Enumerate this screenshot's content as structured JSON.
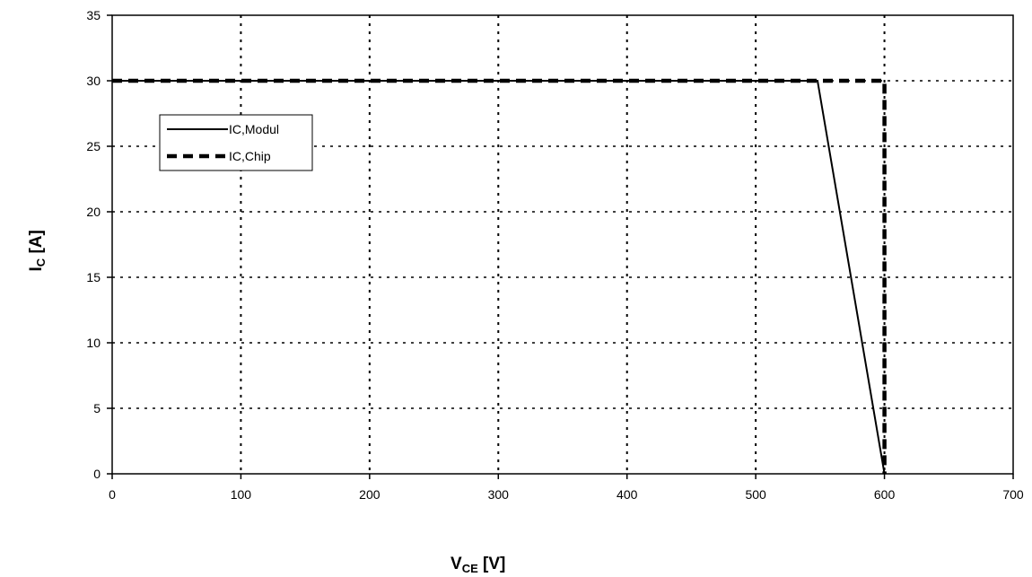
{
  "chart_data": {
    "type": "line",
    "title": "",
    "xlabel": {
      "main": "V",
      "sub": "CE",
      "unit": " [V]"
    },
    "ylabel": {
      "main": "I",
      "sub": "C",
      "unit": " [A]"
    },
    "xlim": [
      0,
      700
    ],
    "ylim": [
      0,
      35
    ],
    "xticks": [
      0,
      100,
      200,
      300,
      400,
      500,
      600,
      700
    ],
    "yticks": [
      0,
      5,
      10,
      15,
      20,
      25,
      30,
      35
    ],
    "xtick_labels": [
      "0",
      "100",
      "200",
      "300",
      "400",
      "500",
      "600",
      "700"
    ],
    "ytick_labels": [
      "0",
      "5",
      "10",
      "15",
      "20",
      "25",
      "30",
      "35"
    ],
    "grid": true,
    "legend_position": "upper-left",
    "series": [
      {
        "name": "IC,Modul",
        "style": "solid",
        "color": "#000000",
        "x": [
          0,
          548,
          600
        ],
        "y": [
          30,
          30,
          0
        ]
      },
      {
        "name": "IC,Chip",
        "style": "dashed",
        "color": "#000000",
        "x": [
          0,
          600,
          600
        ],
        "y": [
          30,
          30,
          0
        ]
      }
    ]
  }
}
